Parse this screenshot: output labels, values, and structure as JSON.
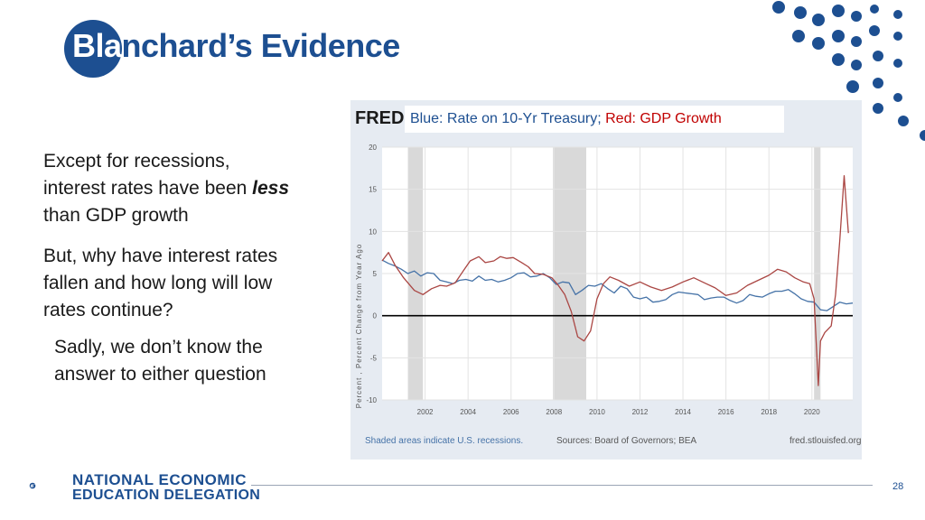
{
  "slide": {
    "title_part1": "Bla",
    "title_part2": "nchard’s Evidence",
    "bullet1_a": "Except for recessions,",
    "bullet1_b": "interest rates have been ",
    "bullet1_em": "less",
    "bullet1_c": "than GDP growth",
    "bullet2_a": "But, why have interest rates",
    "bullet2_b": "fallen and how long will low",
    "bullet2_c": "rates continue?",
    "bullet3_a": "Sadly, we don’t know the",
    "bullet3_b": "answer to either question",
    "page_number": "28"
  },
  "logo": {
    "line1": "NATIONAL ECONOMIC",
    "line2": "EDUCATION DELEGATION"
  },
  "colors": {
    "brand_blue": "#1d4f91",
    "series_blue": "#4572a7",
    "series_red": "#aa4643",
    "recession": "#d9d9d9"
  },
  "chart_data": {
    "type": "line",
    "brand": "FRED",
    "legend_blue": "Blue: Rate on 10-Yr Treasury;",
    "legend_red": "Red: GDP Growth",
    "ylabel": "Percent , Percent Change from Year Ago",
    "ylim": [
      -10,
      20
    ],
    "xlim": [
      2000.0,
      2021.9
    ],
    "yticks": [
      "20",
      "15",
      "10",
      "5",
      "0",
      "-5",
      "-10"
    ],
    "xticks": [
      "2002",
      "2004",
      "2006",
      "2008",
      "2010",
      "2012",
      "2014",
      "2016",
      "2018",
      "2020"
    ],
    "recessions": [
      [
        2001.2,
        2001.9
      ],
      [
        2007.95,
        2009.5
      ],
      [
        2020.1,
        2020.4
      ]
    ],
    "grid": true,
    "footer_left": "Shaded areas indicate U.S. recessions.",
    "footer_mid": "Sources: Board of Governors; BEA",
    "footer_right": "fred.stlouisfed.org",
    "series": [
      {
        "name": "Rate on 10-Yr Treasury",
        "color": "#4572a7",
        "x": [
          2000.0,
          2000.3,
          2000.6,
          2000.9,
          2001.2,
          2001.5,
          2001.8,
          2002.1,
          2002.4,
          2002.7,
          2003.0,
          2003.3,
          2003.6,
          2003.9,
          2004.2,
          2004.5,
          2004.8,
          2005.1,
          2005.4,
          2005.7,
          2006.0,
          2006.3,
          2006.6,
          2006.9,
          2007.2,
          2007.5,
          2007.8,
          2008.1,
          2008.4,
          2008.7,
          2009.0,
          2009.3,
          2009.6,
          2009.9,
          2010.2,
          2010.5,
          2010.8,
          2011.1,
          2011.4,
          2011.7,
          2012.0,
          2012.3,
          2012.6,
          2012.9,
          2013.2,
          2013.5,
          2013.8,
          2014.1,
          2014.4,
          2014.7,
          2015.0,
          2015.3,
          2015.6,
          2015.9,
          2016.2,
          2016.5,
          2016.8,
          2017.1,
          2017.4,
          2017.7,
          2018.0,
          2018.3,
          2018.6,
          2018.9,
          2019.2,
          2019.5,
          2019.8,
          2020.1,
          2020.4,
          2020.7,
          2021.0,
          2021.3,
          2021.6,
          2021.9
        ],
        "values": [
          6.6,
          6.2,
          5.9,
          5.5,
          5.0,
          5.3,
          4.7,
          5.1,
          5.0,
          4.2,
          4.0,
          3.8,
          4.2,
          4.3,
          4.1,
          4.7,
          4.2,
          4.3,
          4.0,
          4.2,
          4.5,
          5.0,
          5.1,
          4.6,
          4.7,
          5.0,
          4.5,
          3.7,
          4.0,
          3.9,
          2.5,
          3.0,
          3.6,
          3.5,
          3.8,
          3.2,
          2.7,
          3.5,
          3.2,
          2.2,
          2.0,
          2.2,
          1.6,
          1.7,
          1.9,
          2.5,
          2.8,
          2.7,
          2.6,
          2.5,
          1.9,
          2.1,
          2.2,
          2.2,
          1.8,
          1.5,
          1.8,
          2.5,
          2.3,
          2.2,
          2.6,
          2.9,
          2.9,
          3.1,
          2.6,
          2.0,
          1.7,
          1.6,
          0.7,
          0.6,
          1.1,
          1.6,
          1.4,
          1.5
        ]
      },
      {
        "name": "GDP Growth",
        "color": "#aa4643",
        "x": [
          2000.0,
          2000.3,
          2000.6,
          2001.0,
          2001.5,
          2001.9,
          2002.3,
          2002.7,
          2003.0,
          2003.4,
          2003.8,
          2004.1,
          2004.5,
          2004.8,
          2005.2,
          2005.5,
          2005.8,
          2006.1,
          2006.5,
          2006.8,
          2007.1,
          2007.5,
          2007.9,
          2008.2,
          2008.5,
          2008.8,
          2009.1,
          2009.4,
          2009.7,
          2010.0,
          2010.3,
          2010.6,
          2011.0,
          2011.5,
          2012.0,
          2012.5,
          2013.0,
          2013.5,
          2014.0,
          2014.5,
          2015.0,
          2015.5,
          2016.0,
          2016.5,
          2017.0,
          2017.5,
          2018.0,
          2018.4,
          2018.8,
          2019.2,
          2019.6,
          2019.9,
          2020.1,
          2020.3,
          2020.4,
          2020.6,
          2020.9,
          2021.1,
          2021.3,
          2021.5,
          2021.7
        ],
        "values": [
          6.5,
          7.5,
          6.0,
          4.5,
          3.0,
          2.5,
          3.2,
          3.6,
          3.5,
          3.9,
          5.4,
          6.5,
          7.0,
          6.3,
          6.5,
          7.0,
          6.8,
          6.9,
          6.3,
          5.8,
          5.0,
          4.9,
          4.5,
          3.6,
          2.5,
          0.5,
          -2.5,
          -3.0,
          -1.8,
          2.0,
          3.8,
          4.6,
          4.2,
          3.5,
          4.0,
          3.4,
          3.0,
          3.4,
          4.0,
          4.5,
          3.9,
          3.3,
          2.4,
          2.7,
          3.6,
          4.2,
          4.8,
          5.5,
          5.2,
          4.5,
          4.0,
          3.8,
          2.0,
          -8.3,
          -3.0,
          -2.0,
          -1.2,
          2.5,
          9.0,
          16.6,
          9.8
        ]
      }
    ]
  }
}
